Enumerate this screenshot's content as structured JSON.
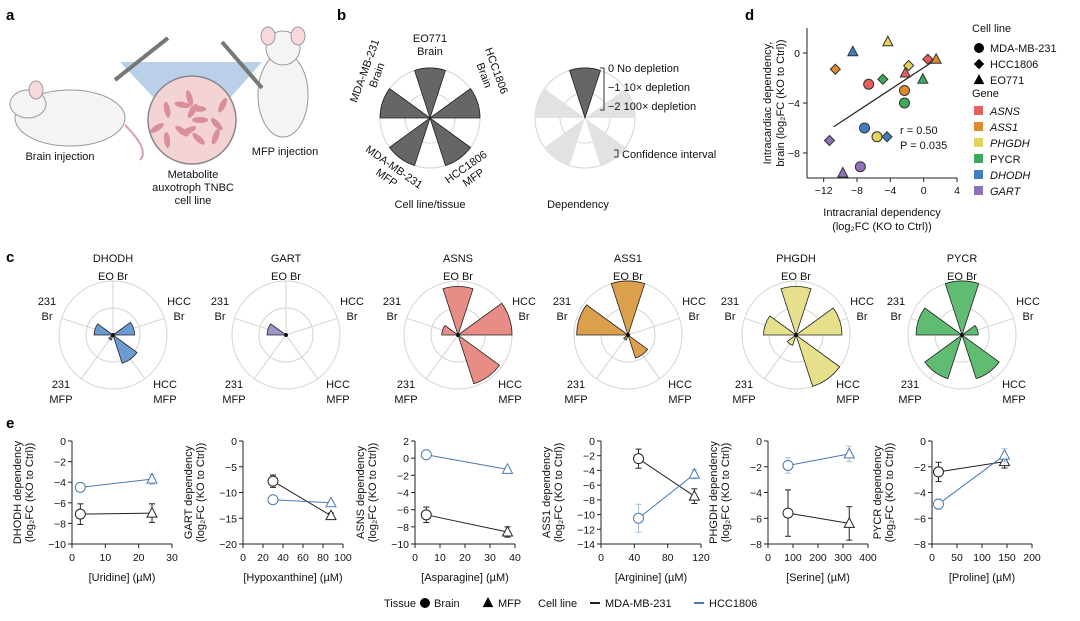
{
  "panel_labels": [
    "a",
    "b",
    "c",
    "d",
    "e"
  ],
  "panel_a": {
    "brain_injection": "Brain injection",
    "mfp_injection": "MFP injection",
    "cell_line_lines": [
      "Metabolite",
      "auxotroph TNBC",
      "cell line"
    ]
  },
  "panel_b": {
    "left_title": "Cell line/tissue",
    "right_title": "Dependency",
    "categories": [
      {
        "lines": [
          "EO771",
          "Brain"
        ]
      },
      {
        "lines": [
          "HCC1806",
          "Brain"
        ]
      },
      {
        "lines": [
          "HCC1806",
          "MFP"
        ]
      },
      {
        "lines": [
          "MDA-MB-231",
          "MFP"
        ]
      },
      {
        "lines": [
          "MDA-MB-231",
          "Brain"
        ]
      }
    ],
    "scale": [
      "0 No depletion",
      "−1 10× depletion",
      "−2 100× depletion"
    ],
    "confidence_label": "Confidence interval",
    "bar_color": "#666666",
    "ci_color": "#e2e2e2"
  },
  "chart_data": [
    {
      "type": "rose",
      "panel": "c",
      "rlim": [
        -2,
        0
      ],
      "category_labels": [
        [
          "EO Br"
        ],
        [
          "HCC",
          "Br"
        ],
        [
          "HCC",
          "MFP"
        ],
        [
          "231",
          "MFP"
        ],
        [
          "231",
          "Br"
        ]
      ],
      "series": [
        {
          "title": "DHODH",
          "color": "#6d9ad0",
          "values": [
            -2.0,
            -1.2,
            -0.9,
            -1.8,
            -1.3
          ]
        },
        {
          "title": "GART",
          "color": "#9d94c8",
          "values": [
            -2.0,
            -2.0,
            -2.0,
            -2.0,
            -1.3
          ]
        },
        {
          "title": "ASNS",
          "color": "#e88d86",
          "values": [
            -0.2,
            0.0,
            -0.1,
            -2.0,
            -1.4
          ]
        },
        {
          "title": "ASS1",
          "color": "#dba04b",
          "values": [
            0.0,
            -2.0,
            -1.1,
            -1.8,
            -0.1
          ]
        },
        {
          "title": "PHGDH",
          "color": "#e6df8c",
          "values": [
            -0.2,
            -0.3,
            0.0,
            -1.6,
            -0.8
          ]
        },
        {
          "title": "PYCR",
          "color": "#5fbc72",
          "values": [
            0.0,
            -1.4,
            -0.3,
            -0.3,
            -0.3
          ]
        }
      ]
    },
    {
      "type": "scatter",
      "panel": "d",
      "xlabel": [
        "Intracranial dependency",
        "(log₂FC (KO to Ctrl))"
      ],
      "ylabel": [
        "Intracardiac dependency,",
        "brain (log₂FC (KO to Ctrl))"
      ],
      "xlim": [
        -14,
        4
      ],
      "ylim": [
        -10,
        2
      ],
      "xticks": [
        -12,
        -8,
        -4,
        0,
        4
      ],
      "yticks": [
        0,
        -4,
        -8
      ],
      "annotation": [
        "r = 0.50",
        "P = 0.035"
      ],
      "fit_line": [
        [
          -10.8,
          -5.9
        ],
        [
          1.3,
          -0.6
        ]
      ],
      "legend": {
        "cell_line_title": "Cell line",
        "cell_lines": [
          {
            "name": "MDA-MB-231",
            "marker": "circle"
          },
          {
            "name": "HCC1806",
            "marker": "diamond"
          },
          {
            "name": "EO771",
            "marker": "triangle"
          }
        ],
        "gene_title": "Gene",
        "genes": [
          {
            "name": "ASNS",
            "color": "#e8605c",
            "italic": true
          },
          {
            "name": "ASS1",
            "color": "#e08a2e",
            "italic": true
          },
          {
            "name": "PHGDH",
            "color": "#e3d35a",
            "italic": true
          },
          {
            "name": "PYCR",
            "color": "#3daa5a",
            "italic": false
          },
          {
            "name": "DHODH",
            "color": "#3f7fc0",
            "italic": true
          },
          {
            "name": "GART",
            "color": "#8e72b8",
            "italic": true
          }
        ]
      },
      "points": [
        {
          "gene": "ASNS",
          "cell_line": "MDA-MB-231",
          "x": -6.6,
          "y": -2.5
        },
        {
          "gene": "ASNS",
          "cell_line": "HCC1806",
          "x": 0.5,
          "y": -0.5
        },
        {
          "gene": "ASNS",
          "cell_line": "EO771",
          "x": -2.2,
          "y": -1.6
        },
        {
          "gene": "ASS1",
          "cell_line": "MDA-MB-231",
          "x": -2.3,
          "y": -3.0
        },
        {
          "gene": "ASS1",
          "cell_line": "HCC1806",
          "x": -10.6,
          "y": -1.3
        },
        {
          "gene": "ASS1",
          "cell_line": "EO771",
          "x": 1.5,
          "y": -0.5
        },
        {
          "gene": "PHGDH",
          "cell_line": "MDA-MB-231",
          "x": -5.6,
          "y": -6.7
        },
        {
          "gene": "PHGDH",
          "cell_line": "HCC1806",
          "x": -1.8,
          "y": -1.0
        },
        {
          "gene": "PHGDH",
          "cell_line": "EO771",
          "x": -4.3,
          "y": 0.9
        },
        {
          "gene": "PYCR",
          "cell_line": "MDA-MB-231",
          "x": -2.3,
          "y": -4.0
        },
        {
          "gene": "PYCR",
          "cell_line": "HCC1806",
          "x": -4.9,
          "y": -2.1
        },
        {
          "gene": "PYCR",
          "cell_line": "EO771",
          "x": -0.1,
          "y": -2.1
        },
        {
          "gene": "DHODH",
          "cell_line": "MDA-MB-231",
          "x": -7.1,
          "y": -6.0
        },
        {
          "gene": "DHODH",
          "cell_line": "HCC1806",
          "x": -4.4,
          "y": -6.7
        },
        {
          "gene": "DHODH",
          "cell_line": "EO771",
          "x": -8.5,
          "y": 0.1
        },
        {
          "gene": "GART",
          "cell_line": "MDA-MB-231",
          "x": -7.6,
          "y": -9.1
        },
        {
          "gene": "GART",
          "cell_line": "HCC1806",
          "x": -11.3,
          "y": -7.0
        },
        {
          "gene": "GART",
          "cell_line": "EO771",
          "x": -9.7,
          "y": -9.6
        }
      ]
    },
    {
      "type": "line",
      "panel": "e",
      "legend": {
        "tissue_title": "Tissue",
        "brain": "Brain",
        "mfp": "MFP",
        "cell_line_title": "Cell line",
        "mda": "MDA-MB-231",
        "hcc": "HCC1806"
      },
      "series_colors": {
        "MDA-MB-231": "#222222",
        "HCC1806": "#4a78b5"
      },
      "charts": [
        {
          "ylabel": [
            "DHODH dependency",
            "(log₂FC (KO to Ctrl))"
          ],
          "xlabel": "[Uridine] (µM)",
          "xlim": [
            0,
            30
          ],
          "ylim": [
            -10,
            0
          ],
          "xticks": [
            0,
            10,
            20,
            30
          ],
          "yticks": [
            0,
            -2,
            -4,
            -6,
            -8,
            -10
          ],
          "series": [
            {
              "name": "MDA-MB-231",
              "points": [
                {
                  "x": 2.5,
                  "y": -7.1,
                  "err": 1.0,
                  "tissue": "Brain"
                },
                {
                  "x": 24,
                  "y": -7.0,
                  "err": 0.9,
                  "tissue": "MFP"
                }
              ]
            },
            {
              "name": "HCC1806",
              "points": [
                {
                  "x": 2.5,
                  "y": -4.5,
                  "err": 0.4,
                  "tissue": "Brain"
                },
                {
                  "x": 24,
                  "y": -3.7,
                  "err": 0.5,
                  "tissue": "MFP"
                }
              ]
            }
          ]
        },
        {
          "ylabel": [
            "GART dependency",
            "(log₂FC (KO to Ctrl))"
          ],
          "xlabel": "[Hypoxanthine] (µM)",
          "xlim": [
            0,
            100
          ],
          "ylim": [
            -20,
            0
          ],
          "xticks": [
            0,
            20,
            40,
            60,
            80,
            100
          ],
          "yticks": [
            0,
            -5,
            -10,
            -15,
            -20
          ],
          "series": [
            {
              "name": "MDA-MB-231",
              "points": [
                {
                  "x": 30,
                  "y": -7.8,
                  "err": 1.2,
                  "tissue": "Brain"
                },
                {
                  "x": 88,
                  "y": -14.5,
                  "err": 0.5,
                  "tissue": "MFP"
                }
              ]
            },
            {
              "name": "HCC1806",
              "points": [
                {
                  "x": 30,
                  "y": -11.4,
                  "err": 0.3,
                  "tissue": "Brain"
                },
                {
                  "x": 88,
                  "y": -12.0,
                  "err": 0.3,
                  "tissue": "MFP"
                }
              ]
            }
          ]
        },
        {
          "ylabel": [
            "ASNS dependency",
            "(log₂FC (KO to Ctrl))"
          ],
          "xlabel": "[Asparagine] (µM)",
          "xlim": [
            0,
            40
          ],
          "ylim": [
            -10,
            2
          ],
          "xticks": [
            0,
            10,
            20,
            30,
            40
          ],
          "yticks": [
            2,
            0,
            -2,
            -4,
            -6,
            -8,
            -10
          ],
          "series": [
            {
              "name": "MDA-MB-231",
              "points": [
                {
                  "x": 4.5,
                  "y": -6.6,
                  "err": 0.9,
                  "tissue": "Brain"
                },
                {
                  "x": 37,
                  "y": -8.6,
                  "err": 0.6,
                  "tissue": "MFP"
                }
              ]
            },
            {
              "name": "HCC1806",
              "points": [
                {
                  "x": 4.5,
                  "y": 0.4,
                  "err": 0.2,
                  "tissue": "Brain"
                },
                {
                  "x": 37,
                  "y": -1.3,
                  "err": 0.2,
                  "tissue": "MFP"
                }
              ]
            }
          ]
        },
        {
          "ylabel": [
            "ASS1 dependency",
            "(log₂FC (KO to Ctrl))"
          ],
          "xlabel": "[Arginine] (µM)",
          "xlim": [
            0,
            120
          ],
          "ylim": [
            -14,
            0
          ],
          "xticks": [
            0,
            40,
            80,
            120
          ],
          "yticks": [
            0,
            -2,
            -4,
            -6,
            -8,
            -10,
            -12,
            -14
          ],
          "series": [
            {
              "name": "MDA-MB-231",
              "points": [
                {
                  "x": 45,
                  "y": -2.4,
                  "err": 1.3,
                  "tissue": "Brain"
                },
                {
                  "x": 112,
                  "y": -7.5,
                  "err": 1.0,
                  "tissue": "MFP"
                }
              ]
            },
            {
              "name": "HCC1806",
              "points": [
                {
                  "x": 45,
                  "y": -10.5,
                  "err": 1.9,
                  "tissue": "Brain"
                },
                {
                  "x": 112,
                  "y": -4.5,
                  "err": 0.6,
                  "tissue": "MFP"
                }
              ]
            }
          ]
        },
        {
          "ylabel": [
            "PHGDH dependency",
            "(log₂FC (KO to Ctrl))"
          ],
          "xlabel": "[Serine] (µM)",
          "xlim": [
            0,
            400
          ],
          "ylim": [
            -8,
            0
          ],
          "xticks": [
            0,
            100,
            200,
            300,
            400
          ],
          "yticks": [
            0,
            -2,
            -4,
            -6,
            -8
          ],
          "series": [
            {
              "name": "MDA-MB-231",
              "points": [
                {
                  "x": 80,
                  "y": -5.6,
                  "err": 1.8,
                  "tissue": "Brain"
                },
                {
                  "x": 325,
                  "y": -6.4,
                  "err": 1.3,
                  "tissue": "MFP"
                }
              ]
            },
            {
              "name": "HCC1806",
              "points": [
                {
                  "x": 80,
                  "y": -1.9,
                  "err": 0.6,
                  "tissue": "Brain"
                },
                {
                  "x": 325,
                  "y": -1.0,
                  "err": 0.6,
                  "tissue": "MFP"
                }
              ]
            }
          ]
        },
        {
          "ylabel": [
            "PYCR dependency",
            "(log₂FC (KO to Ctrl))"
          ],
          "xlabel": "[Proline] (µM)",
          "xlim": [
            0,
            200
          ],
          "ylim": [
            -8,
            0
          ],
          "xticks": [
            0,
            50,
            100,
            150,
            200
          ],
          "yticks": [
            0,
            -2,
            -4,
            -6,
            -8
          ],
          "series": [
            {
              "name": "MDA-MB-231",
              "points": [
                {
                  "x": 13,
                  "y": -2.4,
                  "err": 0.75,
                  "tissue": "Brain"
                },
                {
                  "x": 145,
                  "y": -1.6,
                  "err": 0.5,
                  "tissue": "MFP"
                }
              ]
            },
            {
              "name": "HCC1806",
              "points": [
                {
                  "x": 13,
                  "y": -4.9,
                  "err": 0.4,
                  "tissue": "Brain"
                },
                {
                  "x": 145,
                  "y": -1.1,
                  "err": 0.5,
                  "tissue": "MFP"
                }
              ]
            }
          ]
        }
      ]
    }
  ]
}
